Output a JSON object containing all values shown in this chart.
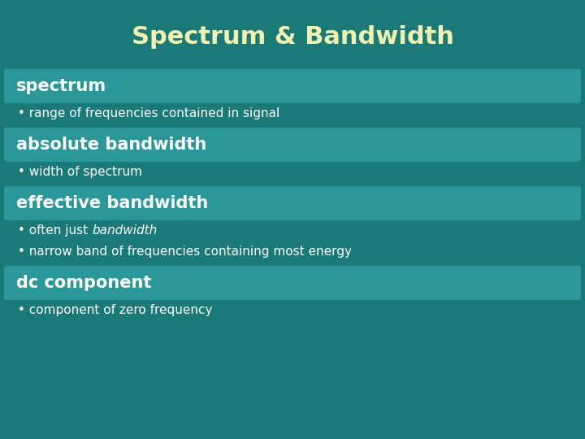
{
  "title": "Spectrum & Bandwidth",
  "title_color": "#f0f0b0",
  "bg_color": "#1a7a78",
  "header_box_color": "#2a9898",
  "header_text_color": "#ffffff",
  "bullet_text_color": "#ffffff",
  "title_fontsize": 22,
  "header_fontsize": 15,
  "bullet_fontsize": 11,
  "sections": [
    {
      "header": "spectrum",
      "bullets": [
        {
          "text": "range of frequencies contained in signal",
          "italic_word": ""
        }
      ]
    },
    {
      "header": "absolute bandwidth",
      "bullets": [
        {
          "text": "width of spectrum",
          "italic_word": ""
        }
      ]
    },
    {
      "header": "effective bandwidth",
      "bullets": [
        {
          "text": "often just bandwidth",
          "italic_word": "bandwidth",
          "prefix": "often just ",
          "italic": "bandwidth",
          "suffix": ""
        },
        {
          "text": "narrow band of frequencies containing most energy",
          "italic_word": ""
        }
      ]
    },
    {
      "header": "dc component",
      "bullets": [
        {
          "text": "component of zero frequency",
          "italic_word": ""
        }
      ]
    }
  ]
}
